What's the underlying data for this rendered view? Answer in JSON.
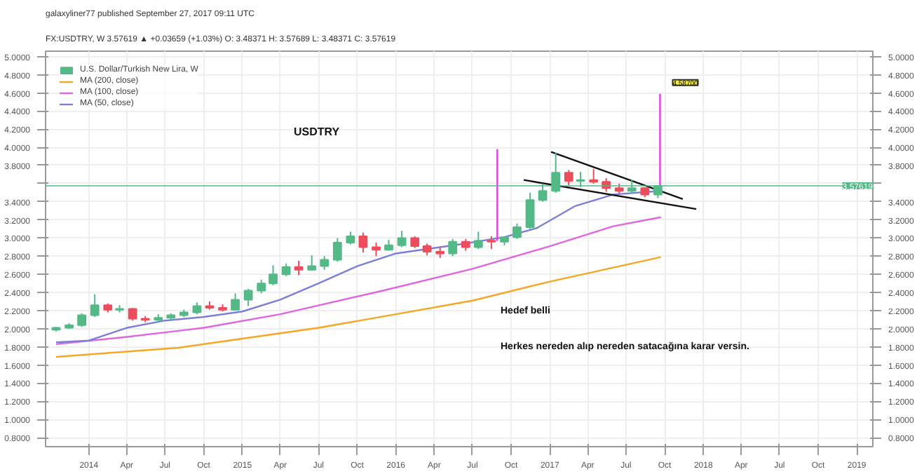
{
  "chart_data": {
    "type": "candlestick",
    "title": "galaxyliner77 published September 27, 2017 09:11 UTC",
    "subtitle": "FX:USDTRY, W 3.57619 ▲ +0.03659 (+1.03%) O: 3.48371 H: 3.57689 L: 3.48371 C: 3.57619",
    "series": [
      {
        "name": "U.S. Dollar/Turkish New Lira, W",
        "x": [
          "2013-10-15",
          "2013-11-15",
          "2013-12-15",
          "2014-01-15",
          "2014-02-15",
          "2014-03-15",
          "2014-04-15",
          "2014-05-15",
          "2014-06-15",
          "2014-07-15",
          "2014-08-15",
          "2014-09-15",
          "2014-10-15",
          "2014-11-15",
          "2014-12-15",
          "2015-01-15",
          "2015-02-15",
          "2015-03-15",
          "2015-04-15",
          "2015-05-15",
          "2015-06-15",
          "2015-07-15",
          "2015-08-15",
          "2015-09-15",
          "2015-10-15",
          "2015-11-15",
          "2015-12-15",
          "2016-01-15",
          "2016-02-15",
          "2016-03-15",
          "2016-04-15",
          "2016-05-15",
          "2016-06-15",
          "2016-07-15",
          "2016-08-15",
          "2016-09-15",
          "2016-10-15",
          "2016-11-15",
          "2016-12-15",
          "2017-01-15",
          "2017-02-15",
          "2017-03-15",
          "2017-04-15",
          "2017-05-15",
          "2017-06-15",
          "2017-07-15",
          "2017-08-15",
          "2017-09-15"
        ],
        "ohlc": [
          [
            1.99,
            2.02,
            1.97,
            2.01
          ],
          [
            2.01,
            2.06,
            2.0,
            2.04
          ],
          [
            2.04,
            2.17,
            2.02,
            2.15
          ],
          [
            2.15,
            2.38,
            2.13,
            2.26
          ],
          [
            2.26,
            2.28,
            2.18,
            2.21
          ],
          [
            2.21,
            2.26,
            2.18,
            2.22
          ],
          [
            2.22,
            2.23,
            2.09,
            2.11
          ],
          [
            2.11,
            2.14,
            2.07,
            2.1
          ],
          [
            2.1,
            2.16,
            2.08,
            2.12
          ],
          [
            2.12,
            2.17,
            2.09,
            2.15
          ],
          [
            2.15,
            2.21,
            2.13,
            2.18
          ],
          [
            2.18,
            2.29,
            2.16,
            2.25
          ],
          [
            2.25,
            2.3,
            2.21,
            2.23
          ],
          [
            2.23,
            2.27,
            2.19,
            2.21
          ],
          [
            2.21,
            2.39,
            2.2,
            2.32
          ],
          [
            2.32,
            2.44,
            2.25,
            2.42
          ],
          [
            2.42,
            2.54,
            2.39,
            2.5
          ],
          [
            2.5,
            2.7,
            2.48,
            2.6
          ],
          [
            2.6,
            2.72,
            2.58,
            2.68
          ],
          [
            2.68,
            2.75,
            2.59,
            2.65
          ],
          [
            2.65,
            2.81,
            2.64,
            2.69
          ],
          [
            2.69,
            2.8,
            2.65,
            2.76
          ],
          [
            2.76,
            3.0,
            2.74,
            2.95
          ],
          [
            2.95,
            3.07,
            2.93,
            3.02
          ],
          [
            3.02,
            3.06,
            2.84,
            2.9
          ],
          [
            2.9,
            2.95,
            2.8,
            2.87
          ],
          [
            2.87,
            2.98,
            2.86,
            2.92
          ],
          [
            2.92,
            3.08,
            2.9,
            3.0
          ],
          [
            3.0,
            3.02,
            2.89,
            2.91
          ],
          [
            2.91,
            2.94,
            2.81,
            2.85
          ],
          [
            2.85,
            2.9,
            2.78,
            2.83
          ],
          [
            2.83,
            2.99,
            2.8,
            2.96
          ],
          [
            2.96,
            2.99,
            2.86,
            2.9
          ],
          [
            2.9,
            3.07,
            2.88,
            2.97
          ],
          [
            2.97,
            3.02,
            2.88,
            2.96
          ],
          [
            2.96,
            3.02,
            2.92,
            3.01
          ],
          [
            3.01,
            3.16,
            2.99,
            3.12
          ],
          [
            3.12,
            3.5,
            3.1,
            3.42
          ],
          [
            3.42,
            3.6,
            3.4,
            3.52
          ],
          [
            3.52,
            3.94,
            3.5,
            3.72
          ],
          [
            3.72,
            3.75,
            3.58,
            3.63
          ],
          [
            3.63,
            3.73,
            3.56,
            3.64
          ],
          [
            3.64,
            3.76,
            3.6,
            3.62
          ],
          [
            3.62,
            3.66,
            3.51,
            3.55
          ],
          [
            3.55,
            3.6,
            3.49,
            3.52
          ],
          [
            3.52,
            3.64,
            3.5,
            3.55
          ],
          [
            3.55,
            3.56,
            3.45,
            3.48
          ],
          [
            3.48,
            3.58,
            3.44,
            3.576
          ]
        ],
        "colors": [
          "#53b987",
          "#53b987",
          "#53b987",
          "#53b987",
          "#eb4d5c",
          "#53b987",
          "#eb4d5c",
          "#eb4d5c",
          "#53b987",
          "#53b987",
          "#53b987",
          "#53b987",
          "#eb4d5c",
          "#eb4d5c",
          "#53b987",
          "#53b987",
          "#53b987",
          "#53b987",
          "#53b987",
          "#eb4d5c",
          "#53b987",
          "#53b987",
          "#53b987",
          "#53b987",
          "#eb4d5c",
          "#eb4d5c",
          "#53b987",
          "#53b987",
          "#eb4d5c",
          "#eb4d5c",
          "#eb4d5c",
          "#53b987",
          "#eb4d5c",
          "#53b987",
          "#eb4d5c",
          "#53b987",
          "#53b987",
          "#53b987",
          "#53b987",
          "#53b987",
          "#eb4d5c",
          "#53b987",
          "#eb4d5c",
          "#eb4d5c",
          "#eb4d5c",
          "#53b987",
          "#eb4d5c",
          "#53b987"
        ]
      },
      {
        "name": "MA (200, close)",
        "type": "line",
        "color": "#f5a623",
        "x": [
          "2013-10-15",
          "2014-08-01",
          "2015-07-01",
          "2016-01-01",
          "2016-07-01",
          "2017-01-01",
          "2017-09-22"
        ],
        "values": [
          1.69,
          1.79,
          2.01,
          2.16,
          2.31,
          2.52,
          2.79
        ]
      },
      {
        "name": "MA (100, close)",
        "type": "line",
        "color": "#e066e0",
        "x": [
          "2013-10-15",
          "2014-04-01",
          "2014-10-01",
          "2015-04-01",
          "2015-12-01",
          "2016-07-01",
          "2017-01-01",
          "2017-06-01",
          "2017-09-22"
        ],
        "values": [
          1.83,
          1.91,
          2.01,
          2.16,
          2.42,
          2.66,
          2.91,
          3.13,
          3.23
        ]
      },
      {
        "name": "MA (50, close)",
        "type": "line",
        "color": "#7b7fd6",
        "x": [
          "2013-10-15",
          "2014-01-01",
          "2014-04-01",
          "2014-07-01",
          "2014-10-01",
          "2015-01-01",
          "2015-04-01",
          "2015-07-01",
          "2015-10-01",
          "2016-01-01",
          "2016-06-01",
          "2016-09-15",
          "2016-12-01",
          "2017-03-01",
          "2017-06-01",
          "2017-09-22"
        ],
        "values": [
          1.85,
          1.87,
          2.01,
          2.09,
          2.13,
          2.19,
          2.32,
          2.5,
          2.69,
          2.83,
          2.93,
          3.01,
          3.11,
          3.35,
          3.48,
          3.52
        ]
      },
      {
        "type": "line",
        "color": "#e040e0",
        "x": [
          "2016-08-29",
          "2016-08-29"
        ],
        "values": [
          2.97,
          3.98
        ]
      },
      {
        "type": "line",
        "color": "#e040e0",
        "x": [
          "2017-09-20",
          "2017-09-20"
        ],
        "values": [
          3.55,
          4.59
        ]
      },
      {
        "type": "line",
        "color": "#111111",
        "x": [
          "2017-01-04",
          "2017-11-13"
        ],
        "values": [
          3.95,
          3.43
        ]
      },
      {
        "type": "line",
        "color": "#111111",
        "x": [
          "2016-10-31",
          "2017-12-15"
        ],
        "values": [
          3.64,
          3.32
        ]
      }
    ],
    "xlim": [
      "2013-09-20",
      "2019-02-08"
    ],
    "xticks": [
      {
        "value": "2014-01-01",
        "label": "2014"
      },
      {
        "value": "2014-04-01",
        "label": "Apr"
      },
      {
        "value": "2014-07-01",
        "label": "Jul"
      },
      {
        "value": "2014-10-01",
        "label": "Oct"
      },
      {
        "value": "2015-01-01",
        "label": "2015"
      },
      {
        "value": "2015-04-01",
        "label": "Apr"
      },
      {
        "value": "2015-07-01",
        "label": "Jul"
      },
      {
        "value": "2015-10-01",
        "label": "Oct"
      },
      {
        "value": "2016-01-01",
        "label": "2016"
      },
      {
        "value": "2016-04-01",
        "label": "Apr"
      },
      {
        "value": "2016-07-01",
        "label": "Jul"
      },
      {
        "value": "2016-10-01",
        "label": "Oct"
      },
      {
        "value": "2017-01-01",
        "label": "2017"
      },
      {
        "value": "2017-04-01",
        "label": "Apr"
      },
      {
        "value": "2017-07-01",
        "label": "Jul"
      },
      {
        "value": "2017-10-01",
        "label": "Oct"
      },
      {
        "value": "2018-01-01",
        "label": "2018"
      },
      {
        "value": "2018-04-01",
        "label": "Apr"
      },
      {
        "value": "2018-07-01",
        "label": "Jul"
      },
      {
        "value": "2018-10-01",
        "label": "Oct"
      },
      {
        "value": "2019-01-01",
        "label": "2019"
      }
    ],
    "ylim": [
      0.7,
      5.06
    ],
    "yticks": [
      {
        "value": 0.8,
        "label": "0.8000"
      },
      {
        "value": 1.0,
        "label": "1.0000"
      },
      {
        "value": 1.2,
        "label": "1.2000"
      },
      {
        "value": 1.4,
        "label": "1.4000"
      },
      {
        "value": 1.6,
        "label": "1.6000"
      },
      {
        "value": 1.8,
        "label": "1.8000"
      },
      {
        "value": 2.0,
        "label": "2.0000"
      },
      {
        "value": 2.2,
        "label": "2.2000"
      },
      {
        "value": 2.4,
        "label": "2.4000"
      },
      {
        "value": 2.6,
        "label": "2.6000"
      },
      {
        "value": 2.8,
        "label": "2.8000"
      },
      {
        "value": 3.0,
        "label": "3.0000"
      },
      {
        "value": 3.2,
        "label": "3.2000"
      },
      {
        "value": 3.4,
        "label": "3.4000"
      },
      {
        "value": 3.6,
        "label": null
      },
      {
        "value": 3.8,
        "label": "3.8000"
      },
      {
        "value": 4.0,
        "label": "4.0000"
      },
      {
        "value": 4.2,
        "label": "4.2000"
      },
      {
        "value": 4.4,
        "label": "4.4000"
      },
      {
        "value": 4.6,
        "label": "4.6000"
      },
      {
        "value": 4.8,
        "label": "4.8000"
      },
      {
        "value": 5.0,
        "label": "5.0000"
      }
    ],
    "y2lim": [
      0.7,
      5.06
    ],
    "y2ticks": [
      {
        "value": 0.8,
        "label": "0.8000"
      },
      {
        "value": 1.0,
        "label": "1.0000"
      },
      {
        "value": 1.2,
        "label": "1.2000"
      },
      {
        "value": 1.4,
        "label": "1.4000"
      },
      {
        "value": 1.6,
        "label": "1.6000"
      },
      {
        "value": 1.8,
        "label": "1.8000"
      },
      {
        "value": 2.0,
        "label": "2.0000"
      },
      {
        "value": 2.2,
        "label": "2.2000"
      },
      {
        "value": 2.4,
        "label": "2.4000"
      },
      {
        "value": 2.6,
        "label": "2.6000"
      },
      {
        "value": 2.8,
        "label": "2.8000"
      },
      {
        "value": 3.0,
        "label": "3.0000"
      },
      {
        "value": 3.2,
        "label": "3.2000"
      },
      {
        "value": 3.4,
        "label": "3.4000"
      },
      {
        "value": 3.6,
        "label": null
      },
      {
        "value": 3.8,
        "label": "3.8000"
      },
      {
        "value": 4.0,
        "label": "4.0000"
      },
      {
        "value": 4.2,
        "label": "4.2000"
      },
      {
        "value": 4.4,
        "label": "4.4000"
      },
      {
        "value": 4.6,
        "label": "4.6000"
      },
      {
        "value": 4.8,
        "label": "4.8000"
      },
      {
        "value": 5.0,
        "label": "5.0000"
      }
    ],
    "ref_lines": [
      {
        "axis": "y",
        "value": 3.57619,
        "label": "3.57619",
        "color": "#53b987"
      }
    ],
    "annotations": [
      "USDTRY",
      "Hedef belli",
      "Herkes nereden alıp nereden satacağına karar versin.",
      {
        "text": "4.58700",
        "x": "2017-09-20",
        "y": 4.59
      }
    ],
    "grid": true,
    "legend": "top left"
  }
}
